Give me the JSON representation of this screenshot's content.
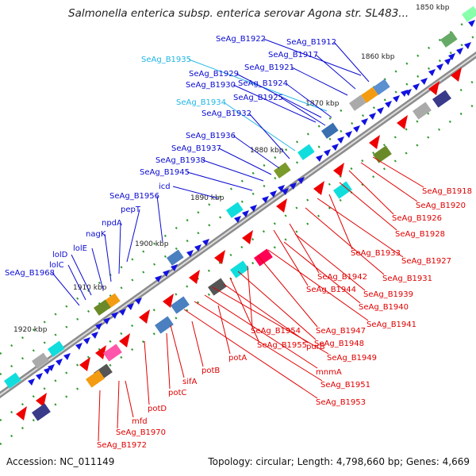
{
  "title": "Salmonella enterica subsp. enterica serovar Agona str. SL483...",
  "footer": {
    "accession": "Accession: NC_011149",
    "summary": "Topology: circular; Length: 4,798,660 bp; Genes: 4,669"
  },
  "colors": {
    "forward_label": "#0b0bd0",
    "reverse_label": "#e00000",
    "highlight_label": "#21b5e6",
    "backbone": "#8c8c8c"
  },
  "ticks": [
    "1850 kbp",
    "1860 kbp",
    "1870 kbp",
    "1880 kbp",
    "1890 kbp",
    "1900 kbp",
    "1910 kbp",
    "1920 kbp"
  ],
  "forward_labels": [
    {
      "text": "SeAg_B1922"
    },
    {
      "text": "SeAg_B1912"
    },
    {
      "text": "SeAg_B1917"
    },
    {
      "text": "SeAg_B1935",
      "highlight": true
    },
    {
      "text": "SeAg_B1921"
    },
    {
      "text": "SeAg_B1929"
    },
    {
      "text": "SeAg_B1930"
    },
    {
      "text": "SeAg_B1924"
    },
    {
      "text": "SeAg_B1925"
    },
    {
      "text": "SeAg_B1934",
      "highlight": true
    },
    {
      "text": "SeAg_B1932"
    },
    {
      "text": "SeAg_B1936"
    },
    {
      "text": "SeAg_B1937"
    },
    {
      "text": "SeAg_B1938"
    },
    {
      "text": "SeAg_B1945"
    },
    {
      "text": "icd"
    },
    {
      "text": "SeAg_B1956"
    },
    {
      "text": "pepT"
    },
    {
      "text": "npdA"
    },
    {
      "text": "nagK"
    },
    {
      "text": "lolE"
    },
    {
      "text": "lolD"
    },
    {
      "text": "lolC"
    },
    {
      "text": "SeAg_B1968"
    }
  ],
  "reverse_labels": [
    {
      "text": "SeAg_B1918"
    },
    {
      "text": "SeAg_B1920"
    },
    {
      "text": "SeAg_B1926"
    },
    {
      "text": "SeAg_B1928"
    },
    {
      "text": "SeAg_B1933"
    },
    {
      "text": "SeAg_B1927"
    },
    {
      "text": "SeAg_B1931"
    },
    {
      "text": "SeAg_B1942"
    },
    {
      "text": "SeAg_B1944"
    },
    {
      "text": "SeAg_B1939"
    },
    {
      "text": "SeAg_B1940"
    },
    {
      "text": "SeAg_B1941"
    },
    {
      "text": "SeAg_B1947"
    },
    {
      "text": "SeAg_B1954"
    },
    {
      "text": "SeAg_B1948"
    },
    {
      "text": "SeAg_B1955"
    },
    {
      "text": "purB"
    },
    {
      "text": "SeAg_B1949"
    },
    {
      "text": "potA"
    },
    {
      "text": "mnmA"
    },
    {
      "text": "potB"
    },
    {
      "text": "SeAg_B1951"
    },
    {
      "text": "sifA"
    },
    {
      "text": "SeAg_B1953"
    },
    {
      "text": "potC"
    },
    {
      "text": "potD"
    },
    {
      "text": "mfd"
    },
    {
      "text": "SeAg_B1970"
    },
    {
      "text": "SeAg_B1972"
    }
  ]
}
